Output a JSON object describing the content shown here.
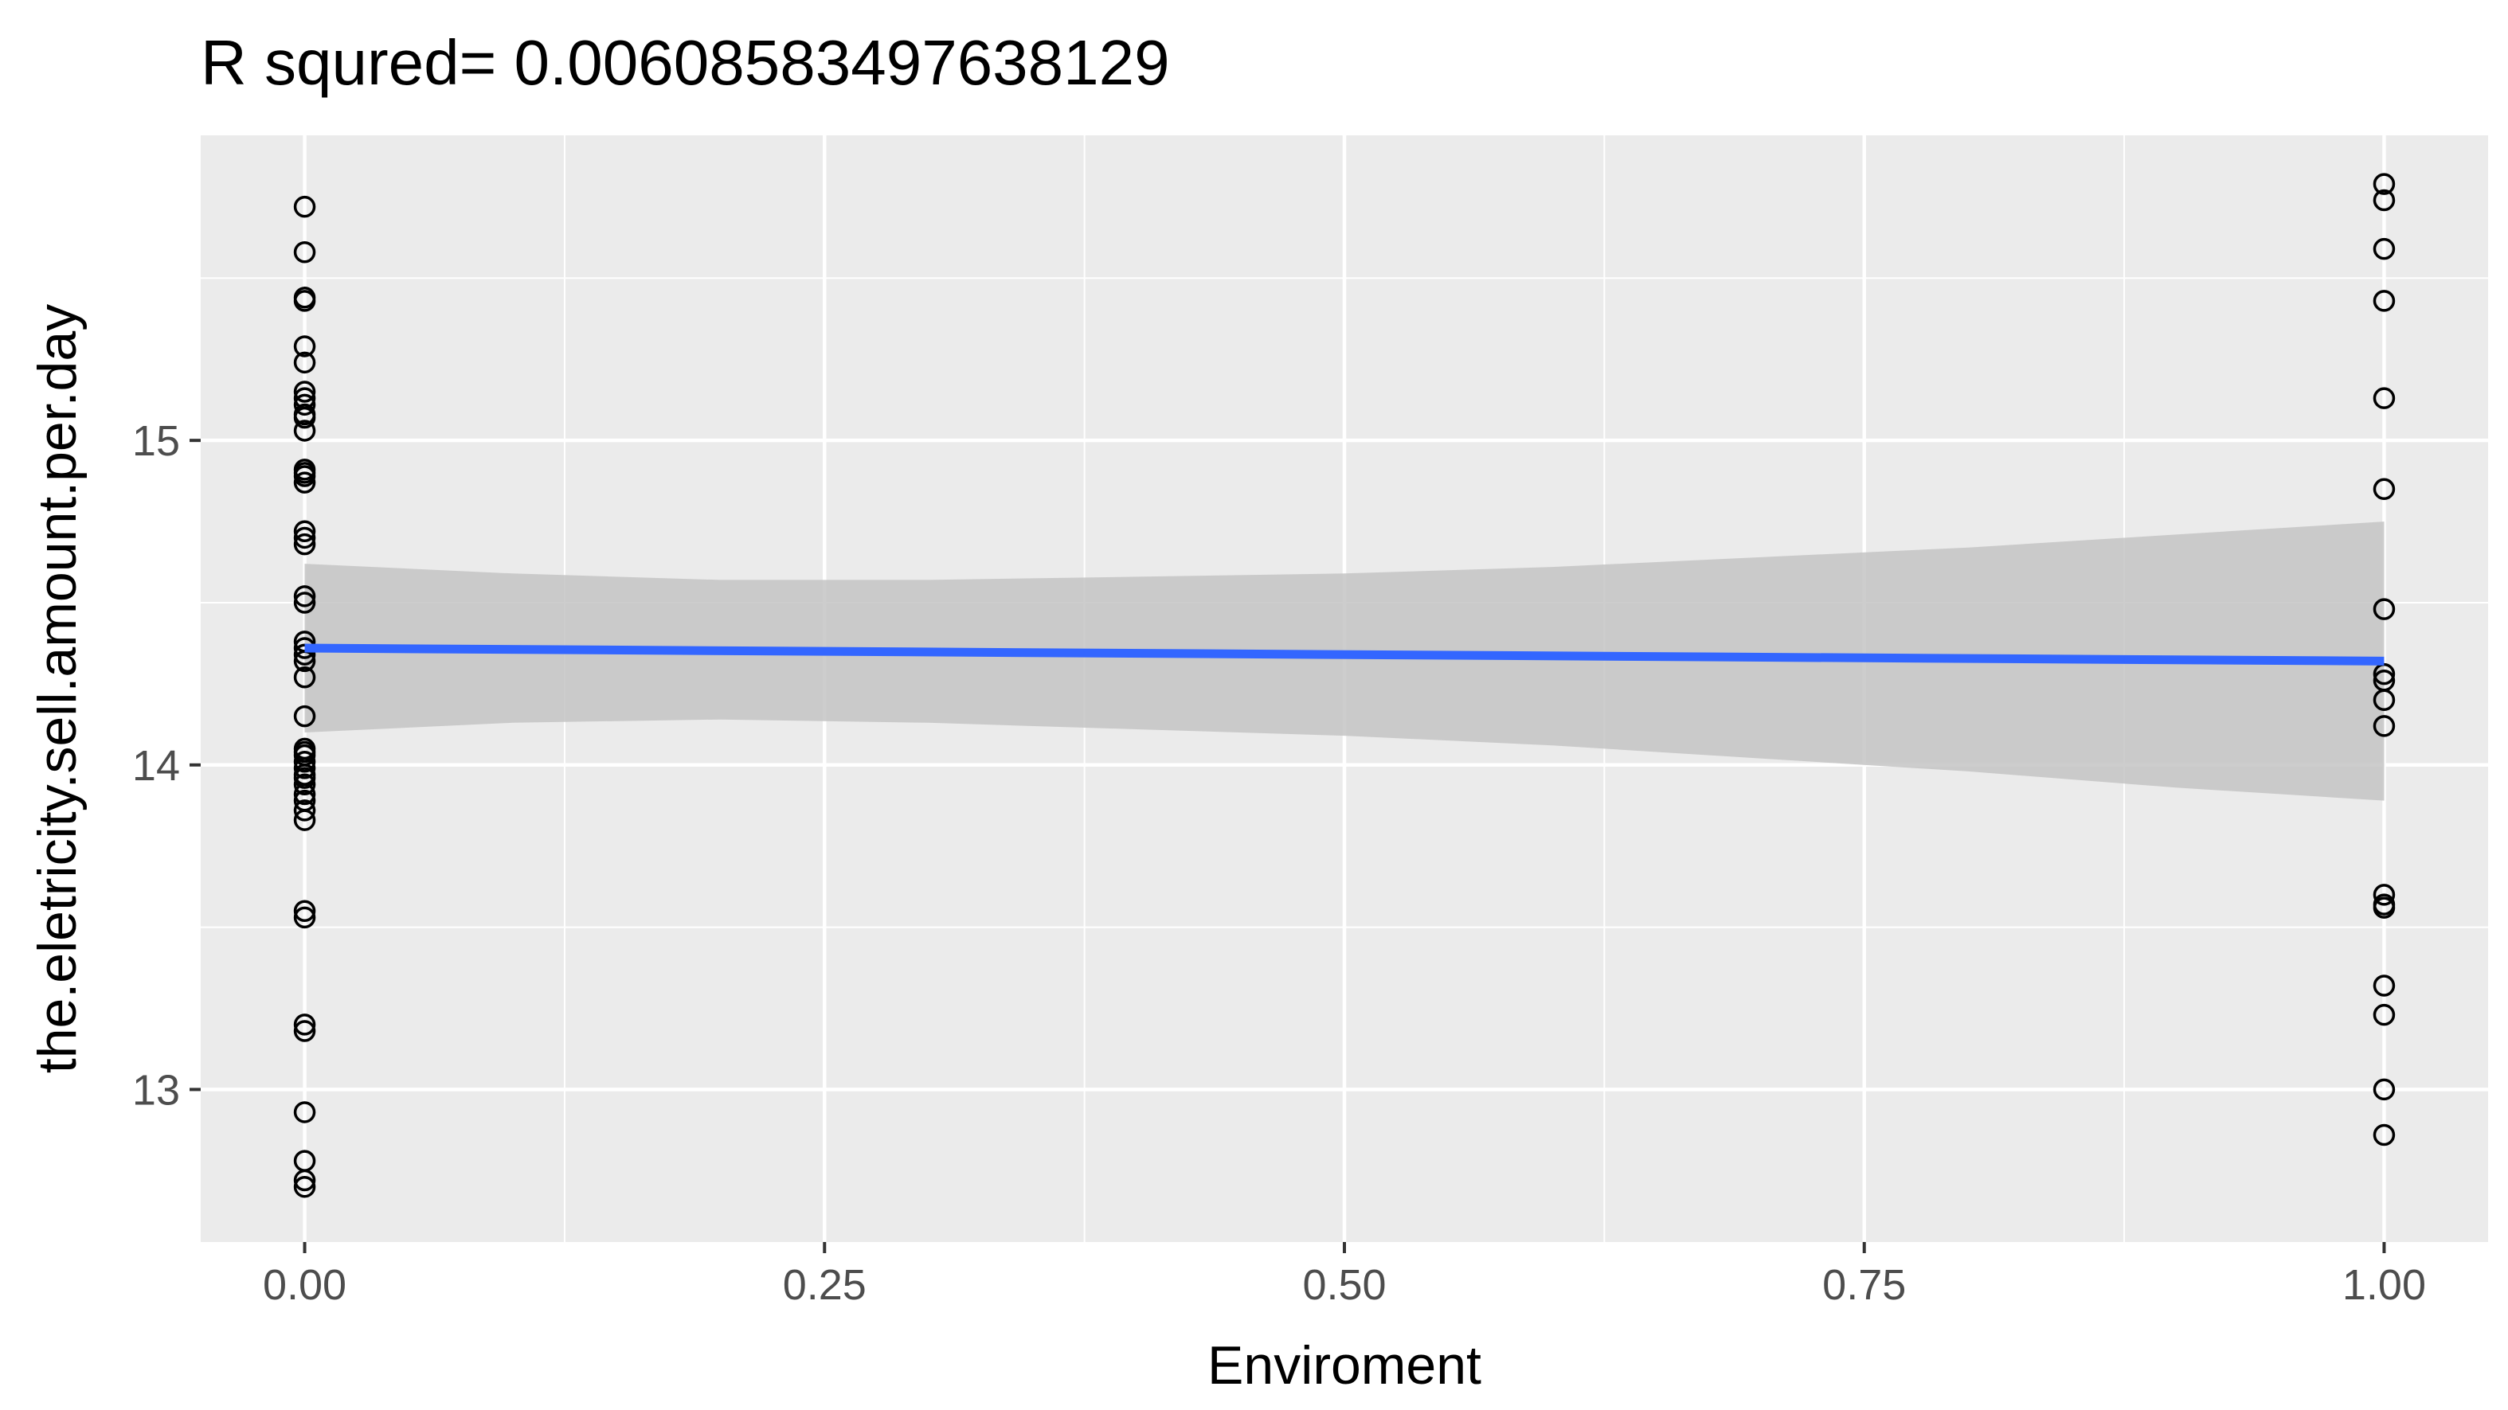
{
  "chart_data": {
    "type": "scatter",
    "title": "R squred= 0.00608583497638129",
    "xlabel": "Enviroment",
    "ylabel": "the.eletricity.sell.amount.per.day",
    "xlim": [
      -0.05,
      1.05
    ],
    "ylim": [
      12.53,
      15.94
    ],
    "x_ticks": [
      0.0,
      0.25,
      0.5,
      0.75,
      1.0
    ],
    "x_tick_labels": [
      "0.00",
      "0.25",
      "0.50",
      "0.75",
      "1.00"
    ],
    "y_ticks": [
      13,
      14,
      15
    ],
    "y_tick_labels": [
      "13",
      "14",
      "15"
    ],
    "grid": true,
    "legend": "none",
    "colors": {
      "panel": "#ebebeb",
      "grid": "#ffffff",
      "ribbon": "#c4c4c4",
      "fit_line": "#3366ff",
      "points": "#000000"
    },
    "series": [
      {
        "x": [
          0,
          0,
          0,
          0,
          0,
          0,
          0,
          0,
          0,
          0,
          0,
          0,
          0,
          0,
          0,
          0,
          0,
          0,
          0,
          0,
          0,
          0,
          0,
          0,
          0,
          0,
          0,
          0,
          0,
          0,
          0,
          0,
          0,
          0,
          0,
          0,
          0,
          0,
          0,
          0,
          0,
          0,
          0,
          0,
          0,
          0,
          0
        ],
        "y": [
          15.72,
          15.58,
          15.44,
          15.43,
          15.29,
          15.24,
          15.15,
          15.13,
          15.11,
          15.07,
          15.03,
          14.91,
          14.89,
          14.87,
          14.72,
          14.7,
          14.68,
          14.52,
          14.5,
          14.38,
          14.34,
          14.32,
          14.27,
          14.15,
          14.05,
          14.04,
          14.03,
          13.99,
          13.96,
          13.94,
          13.91,
          13.89,
          13.86,
          13.83,
          13.55,
          13.53,
          13.2,
          13.18,
          12.93,
          12.78,
          12.72,
          12.7,
          14.01,
          13.97,
          15.08,
          14.9,
          14.36
        ]
      },
      {
        "x": [
          1,
          1,
          1,
          1,
          1,
          1,
          1,
          1,
          1,
          1,
          1,
          1,
          1,
          1,
          1,
          1,
          1,
          1
        ],
        "y": [
          15.79,
          15.74,
          15.59,
          15.43,
          15.13,
          14.85,
          14.48,
          14.28,
          14.26,
          14.2,
          14.12,
          13.6,
          13.56,
          13.32,
          13.23,
          13.0,
          12.86,
          13.57
        ]
      }
    ],
    "fit": {
      "x": [
        0,
        1
      ],
      "y": [
        14.36,
        14.32
      ],
      "ci_x": [
        0.0,
        0.1,
        0.2,
        0.3,
        0.4,
        0.5,
        0.6,
        0.7,
        0.8,
        0.9,
        1.0
      ],
      "ci_lower": [
        14.1,
        14.13,
        14.14,
        14.13,
        14.11,
        14.09,
        14.06,
        14.02,
        13.98,
        13.93,
        13.89
      ],
      "ci_upper": [
        14.62,
        14.59,
        14.57,
        14.57,
        14.58,
        14.59,
        14.61,
        14.64,
        14.67,
        14.71,
        14.75
      ]
    }
  }
}
